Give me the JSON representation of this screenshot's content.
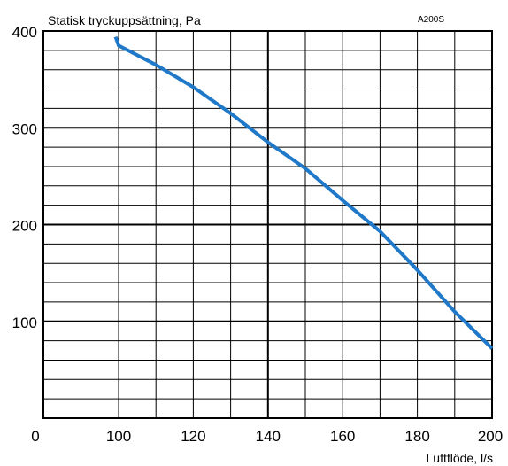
{
  "chart_data": {
    "type": "line",
    "title": "Statisk tryckuppsättning, Pa",
    "tag": "A200S",
    "xlabel": "Luftflöde, l/s",
    "ylabel": "",
    "xlim": [
      0,
      200
    ],
    "ylim": [
      0,
      400
    ],
    "x_axis_ticks": [
      0,
      100,
      120,
      140,
      160,
      180,
      200
    ],
    "x_axis_tick_labels": [
      "0",
      "100",
      "120",
      "140",
      "160",
      "180",
      "200"
    ],
    "y_axis_ticks": [
      100,
      200,
      300,
      400
    ],
    "y_axis_tick_labels": [
      "100",
      "200",
      "300",
      "400"
    ],
    "grid": true,
    "legend": "none",
    "line_color": "#1f78c8",
    "series": [
      {
        "x": [
          96,
          100,
          110,
          120,
          130,
          140,
          150,
          160,
          170,
          180,
          190,
          200
        ],
        "y": [
          394,
          385,
          365,
          342,
          315,
          285,
          258,
          225,
          193,
          153,
          110,
          72
        ]
      }
    ]
  }
}
